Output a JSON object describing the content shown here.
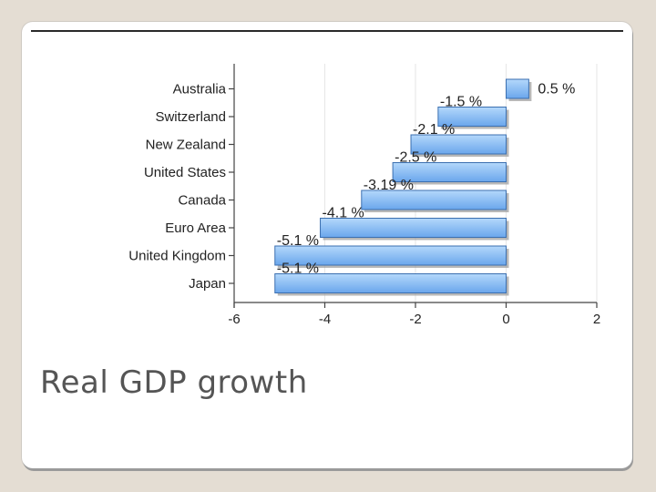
{
  "slide": {
    "caption": "Real GDP growth"
  },
  "colors": {
    "bar_light": "#b4d8fb",
    "bar_dark": "#6aa6ec",
    "bar_border": "#3b6fb0",
    "bar_shadow": "#9a9a9a",
    "axis": "#444444",
    "grid": "#e6e6e6"
  },
  "chart_data": {
    "type": "bar",
    "orientation": "horizontal",
    "title": "",
    "xlabel": "",
    "ylabel": "",
    "categories": [
      "Australia",
      "Switzerland",
      "New Zealand",
      "United States",
      "Canada",
      "Euro Area",
      "United Kingdom",
      "Japan"
    ],
    "values": [
      0.5,
      -1.5,
      -2.1,
      -2.5,
      -3.19,
      -4.1,
      -5.1,
      -5.1
    ],
    "data_labels": [
      "0.5 %",
      "-1.5 %",
      "-2.1 %",
      "-2.5 %",
      "-3.19 %",
      "-4.1 %",
      "-5.1 %",
      "-5.1 %"
    ],
    "xlim": [
      -6,
      2
    ],
    "xticks": [
      -6,
      -4,
      -2,
      0,
      2
    ],
    "xtick_labels": [
      "-6",
      "-4",
      "-2",
      "0",
      "2"
    ],
    "grid": true,
    "legend": "none"
  }
}
